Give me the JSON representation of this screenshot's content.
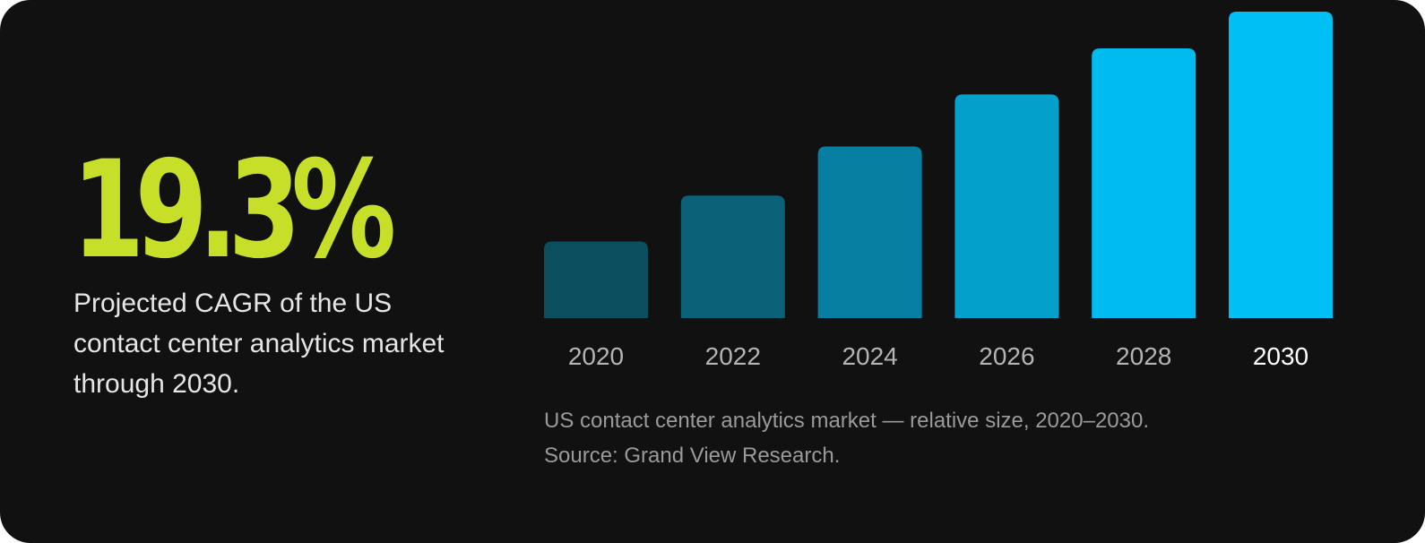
{
  "stat": {
    "value": "19.3%",
    "description": "Projected CAGR of the US contact center analytics market through 2030."
  },
  "caption": {
    "line1": "US contact center analytics market — relative size, 2020–2030.",
    "line2": "Source: Grand View Research."
  },
  "colors": {
    "background": "#111111",
    "stat": "#c8df2a",
    "bars": [
      "#0b4f5f",
      "#0a6178",
      "#077fa2",
      "#03a0cc",
      "#00bbef",
      "#00bff2"
    ],
    "highlight_tick": "#ffffff"
  },
  "chart_data": {
    "type": "bar",
    "categories": [
      "2020",
      "2022",
      "2024",
      "2026",
      "2028",
      "2030"
    ],
    "values": [
      25,
      40,
      56,
      73,
      88,
      100
    ],
    "title": "",
    "xlabel": "",
    "ylabel": "",
    "ylim": [
      0,
      100
    ],
    "grid": false,
    "highlight_category": "2030"
  }
}
